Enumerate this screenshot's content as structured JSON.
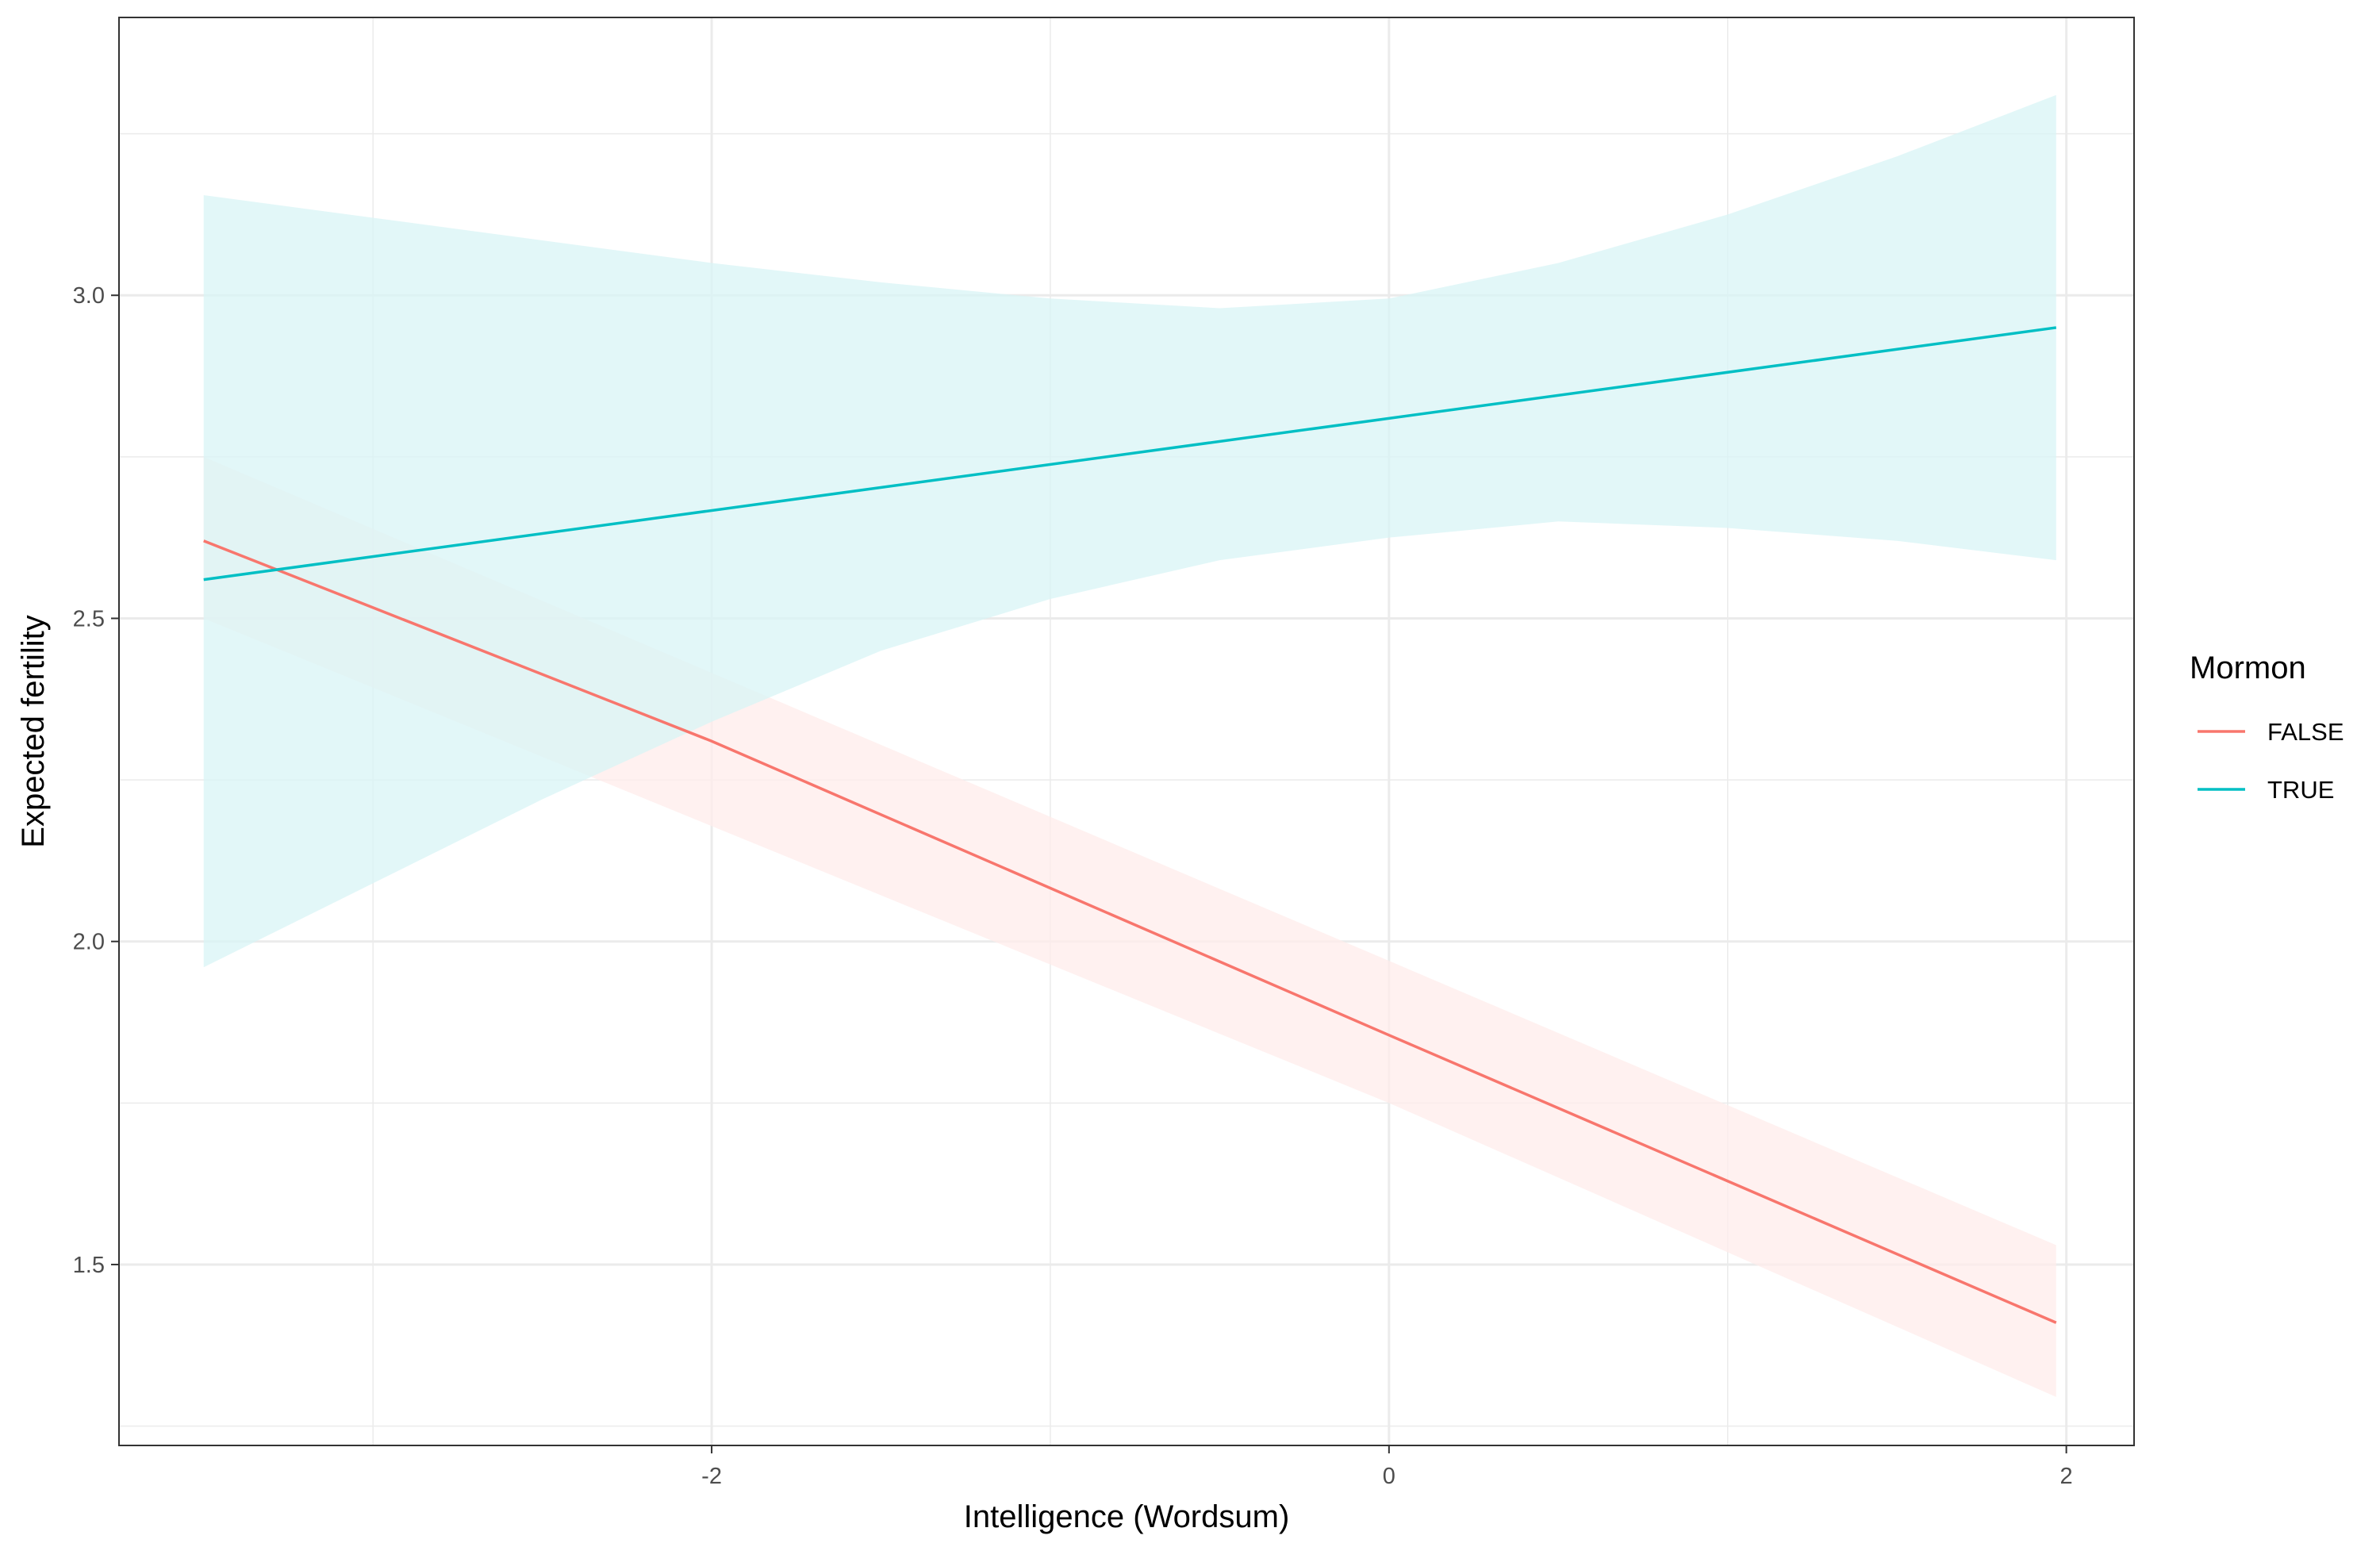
{
  "chart_data": {
    "type": "line",
    "xlabel": "Intelligence (Wordsum)",
    "ylabel": "Expected fertility",
    "xlim": [
      -3.75,
      2.2
    ],
    "ylim": [
      1.22,
      3.43
    ],
    "x_ticks": [
      -2,
      0,
      2
    ],
    "x_tick_labels": [
      "-2",
      "0",
      "2"
    ],
    "x_minor_ticks": [
      -3,
      -1,
      1
    ],
    "y_ticks": [
      1.5,
      2.0,
      2.5,
      3.0
    ],
    "y_tick_labels": [
      "1.5",
      "2.0",
      "2.5",
      "3.0"
    ],
    "y_minor_ticks": [
      1.25,
      1.75,
      2.25,
      2.75,
      3.25
    ],
    "grid": true,
    "legend": {
      "title": "Mormon",
      "position": "right"
    },
    "series": [
      {
        "name": "FALSE",
        "color": "#F8766D",
        "fill_color": "#FFECEB",
        "x": [
          -3.5,
          -2,
          0,
          1.97
        ],
        "y": [
          2.62,
          2.31,
          1.855,
          1.41
        ],
        "ribbon_x": [
          -3.5,
          0,
          1.97
        ],
        "ribbon_lower": [
          2.5,
          1.75,
          1.295
        ],
        "ribbon_upper": [
          2.75,
          1.97,
          1.53
        ]
      },
      {
        "name": "TRUE",
        "color": "#00BFC4",
        "fill_color": "#D8F4F6",
        "x": [
          -3.5,
          1.97
        ],
        "y": [
          2.56,
          2.95
        ],
        "ribbon_x": [
          -3.5,
          -3.0,
          -2.5,
          -2.0,
          -1.5,
          -1.0,
          -0.5,
          0.0,
          0.5,
          1.0,
          1.5,
          1.97
        ],
        "ribbon_lower": [
          1.96,
          2.09,
          2.22,
          2.34,
          2.45,
          2.53,
          2.59,
          2.625,
          2.65,
          2.64,
          2.62,
          2.59
        ],
        "ribbon_upper": [
          3.155,
          3.12,
          3.085,
          3.05,
          3.02,
          2.995,
          2.98,
          2.995,
          3.05,
          3.125,
          3.215,
          3.31
        ]
      }
    ]
  }
}
